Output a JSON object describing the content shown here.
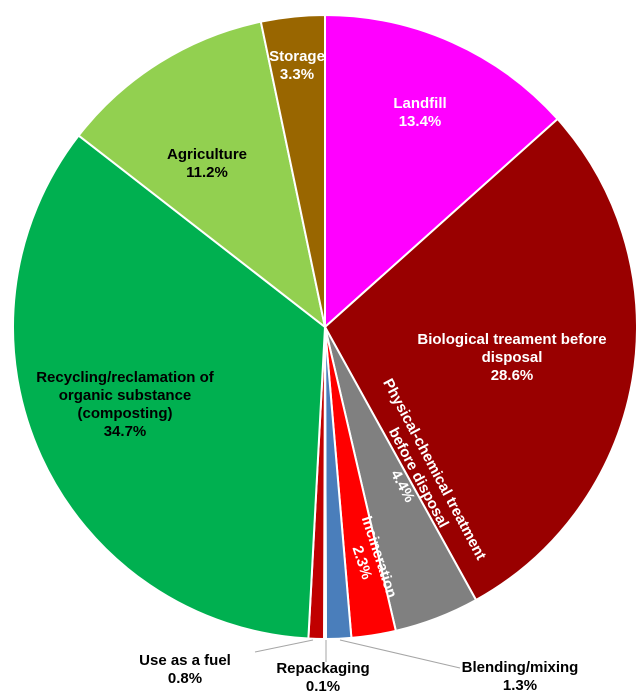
{
  "chart_data": {
    "type": "pie",
    "categories": [
      "Landfill",
      "Biological treament before disposal",
      "Physical-chemical treatment before disposal",
      "Incineration",
      "Blending/mixing",
      "Repackaging",
      "Use as a fuel",
      "Recycling/reclamation of organic substance (composting)",
      "Agriculture",
      "Storage"
    ],
    "values": [
      13.4,
      28.6,
      4.4,
      2.3,
      1.3,
      0.1,
      0.8,
      34.7,
      11.2,
      3.3
    ],
    "value_labels": [
      "13.4%",
      "28.6%",
      "4.4%",
      "2.3%",
      "1.3%",
      "0.1%",
      "0.8%",
      "34.7%",
      "11.2%",
      "3.3%"
    ],
    "colors": [
      "#ff00ff",
      "#990000",
      "#808080",
      "#ff0000",
      "#4a7ebb",
      "#7f7f7f",
      "#c00000",
      "#00b050",
      "#92d050",
      "#996600"
    ]
  }
}
